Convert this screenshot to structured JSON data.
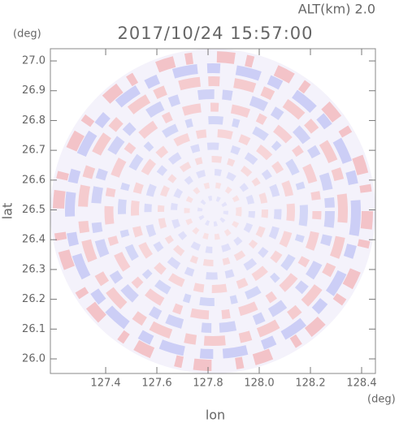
{
  "chart_data": {
    "type": "ppi",
    "title": "2017/10/24 15:57:00",
    "subtitle": "ALT(km) 2.0",
    "x_label": "lon",
    "y_label": "lat",
    "x_unit": "(deg)",
    "y_unit": "(deg)",
    "xlim": [
      127.184,
      128.454
    ],
    "ylim": [
      25.951,
      27.041
    ],
    "xticks": [
      127.4,
      127.6,
      127.8,
      {
        "value": 128.0,
        "label": "128.0"
      },
      128.2,
      128.4
    ],
    "yticks": [
      {
        "value": 26.0,
        "label": "26.0"
      },
      26.1,
      26.2,
      26.3,
      26.4,
      26.5,
      26.6,
      26.7,
      26.8,
      26.9,
      {
        "value": 27.0,
        "label": "27.0"
      }
    ]
  }
}
